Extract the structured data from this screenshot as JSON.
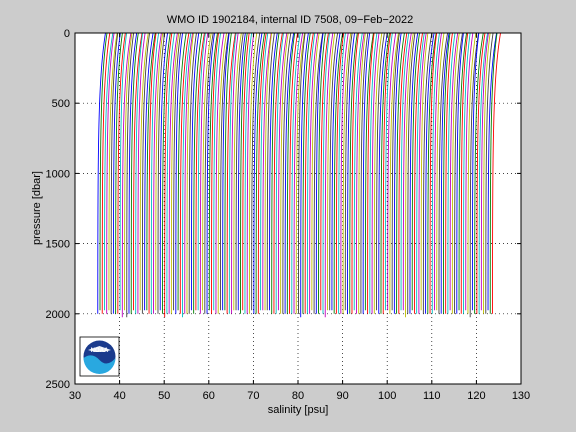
{
  "chart_data": {
    "type": "line",
    "title": "WMO ID 1902184, internal ID 7508, 09−Feb−2022",
    "xlabel": "salinity [psu]",
    "ylabel": "pressure [dbar]",
    "xlim": [
      30,
      130
    ],
    "ylim": [
      0,
      2500
    ],
    "y_reversed": true,
    "grid": true,
    "x_ticks": [
      30,
      40,
      50,
      60,
      70,
      80,
      90,
      100,
      110,
      120,
      130
    ],
    "y_ticks": [
      0,
      500,
      1000,
      1500,
      2000,
      2500
    ],
    "x_tick_labels": [
      "30",
      "40",
      "50",
      "60",
      "70",
      "80",
      "90",
      "100",
      "110",
      "120",
      "130"
    ],
    "y_tick_labels": [
      "0",
      "500",
      "1000",
      "1500",
      "2000",
      "2500"
    ],
    "profiles": {
      "count": 178,
      "first_offset_psu": 35.0,
      "offset_step_psu": 0.5,
      "surface_salinity_psu": 36.8,
      "deep_salinity_psu": 35.1,
      "max_pressure_dbar": 2000
    },
    "colors": [
      "#0000ff",
      "#008000",
      "#ff0000",
      "#00bfbf",
      "#bf00bf",
      "#bfbf00",
      "#404040"
    ]
  },
  "logo": {
    "text": "NOAA"
  }
}
